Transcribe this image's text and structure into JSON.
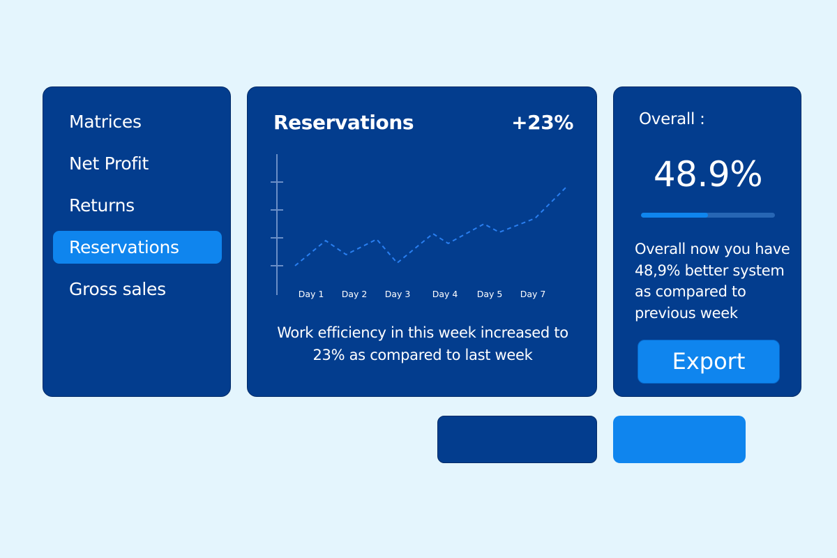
{
  "colors": {
    "background": "#e4f5fd",
    "card": "#033d8e",
    "accent": "#0f85ee",
    "line": "#2a7ff0",
    "axis": "#6b8fc7",
    "track": "#2766b4"
  },
  "sidebar": {
    "items": [
      {
        "label": "Matrices",
        "active": false
      },
      {
        "label": "Net Profit",
        "active": false
      },
      {
        "label": "Returns",
        "active": false
      },
      {
        "label": "Reservations",
        "active": true
      },
      {
        "label": "Gross sales",
        "active": false
      }
    ]
  },
  "reservations": {
    "title": "Reservations",
    "delta": "+23%",
    "caption_line1": "Work efficiency in this week increased to",
    "caption_line2": "23% as compared to last week"
  },
  "chart_data": {
    "type": "line",
    "categories": [
      "Day 1",
      "Day 2",
      "Day 3",
      "Day 4",
      "Day 5",
      "Day 7"
    ],
    "x": [
      1,
      1.6,
      2,
      2.6,
      3,
      3.7,
      4,
      4.7,
      5,
      5.7,
      6.3
    ],
    "values": [
      1.0,
      1.9,
      1.4,
      1.95,
      1.1,
      2.15,
      1.8,
      2.5,
      2.2,
      2.7,
      3.8
    ],
    "line_style": "dashed",
    "ylim": [
      0,
      5
    ],
    "y_ticks": [
      1,
      2,
      3,
      4
    ],
    "grid": false
  },
  "overall": {
    "label": "Overall :",
    "value": "48.9%",
    "progress": 0.5,
    "description_lines": [
      "Overall now you have",
      "48,9% better system",
      "as compared to",
      "previous week"
    ],
    "export_label": "Export"
  }
}
